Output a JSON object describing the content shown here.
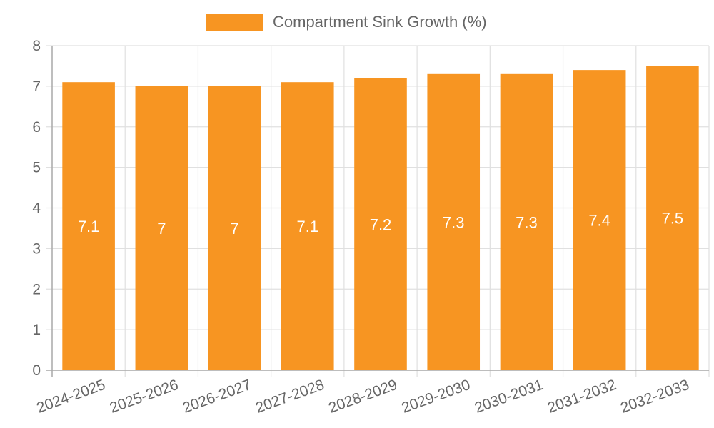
{
  "legend": {
    "label": "Compartment Sink Growth (%)",
    "color": "#f79522"
  },
  "chart_data": {
    "type": "bar",
    "title": "",
    "xlabel": "",
    "ylabel": "",
    "categories": [
      "2024-2025",
      "2025-2026",
      "2026-2027",
      "2027-2028",
      "2028-2029",
      "2029-2030",
      "2030-2031",
      "2031-2032",
      "2032-2033"
    ],
    "series": [
      {
        "name": "Compartment Sink Growth (%)",
        "values": [
          7.1,
          7,
          7,
          7.1,
          7.2,
          7.3,
          7.3,
          7.4,
          7.5
        ],
        "color": "#f79522"
      }
    ],
    "data_labels": [
      "7.1",
      "7",
      "7",
      "7.1",
      "7.2",
      "7.3",
      "7.3",
      "7.4",
      "7.5"
    ],
    "ylim": [
      0,
      8
    ],
    "yticks": [
      0,
      1,
      2,
      3,
      4,
      5,
      6,
      7,
      8
    ],
    "grid": true,
    "legend_position": "top"
  }
}
